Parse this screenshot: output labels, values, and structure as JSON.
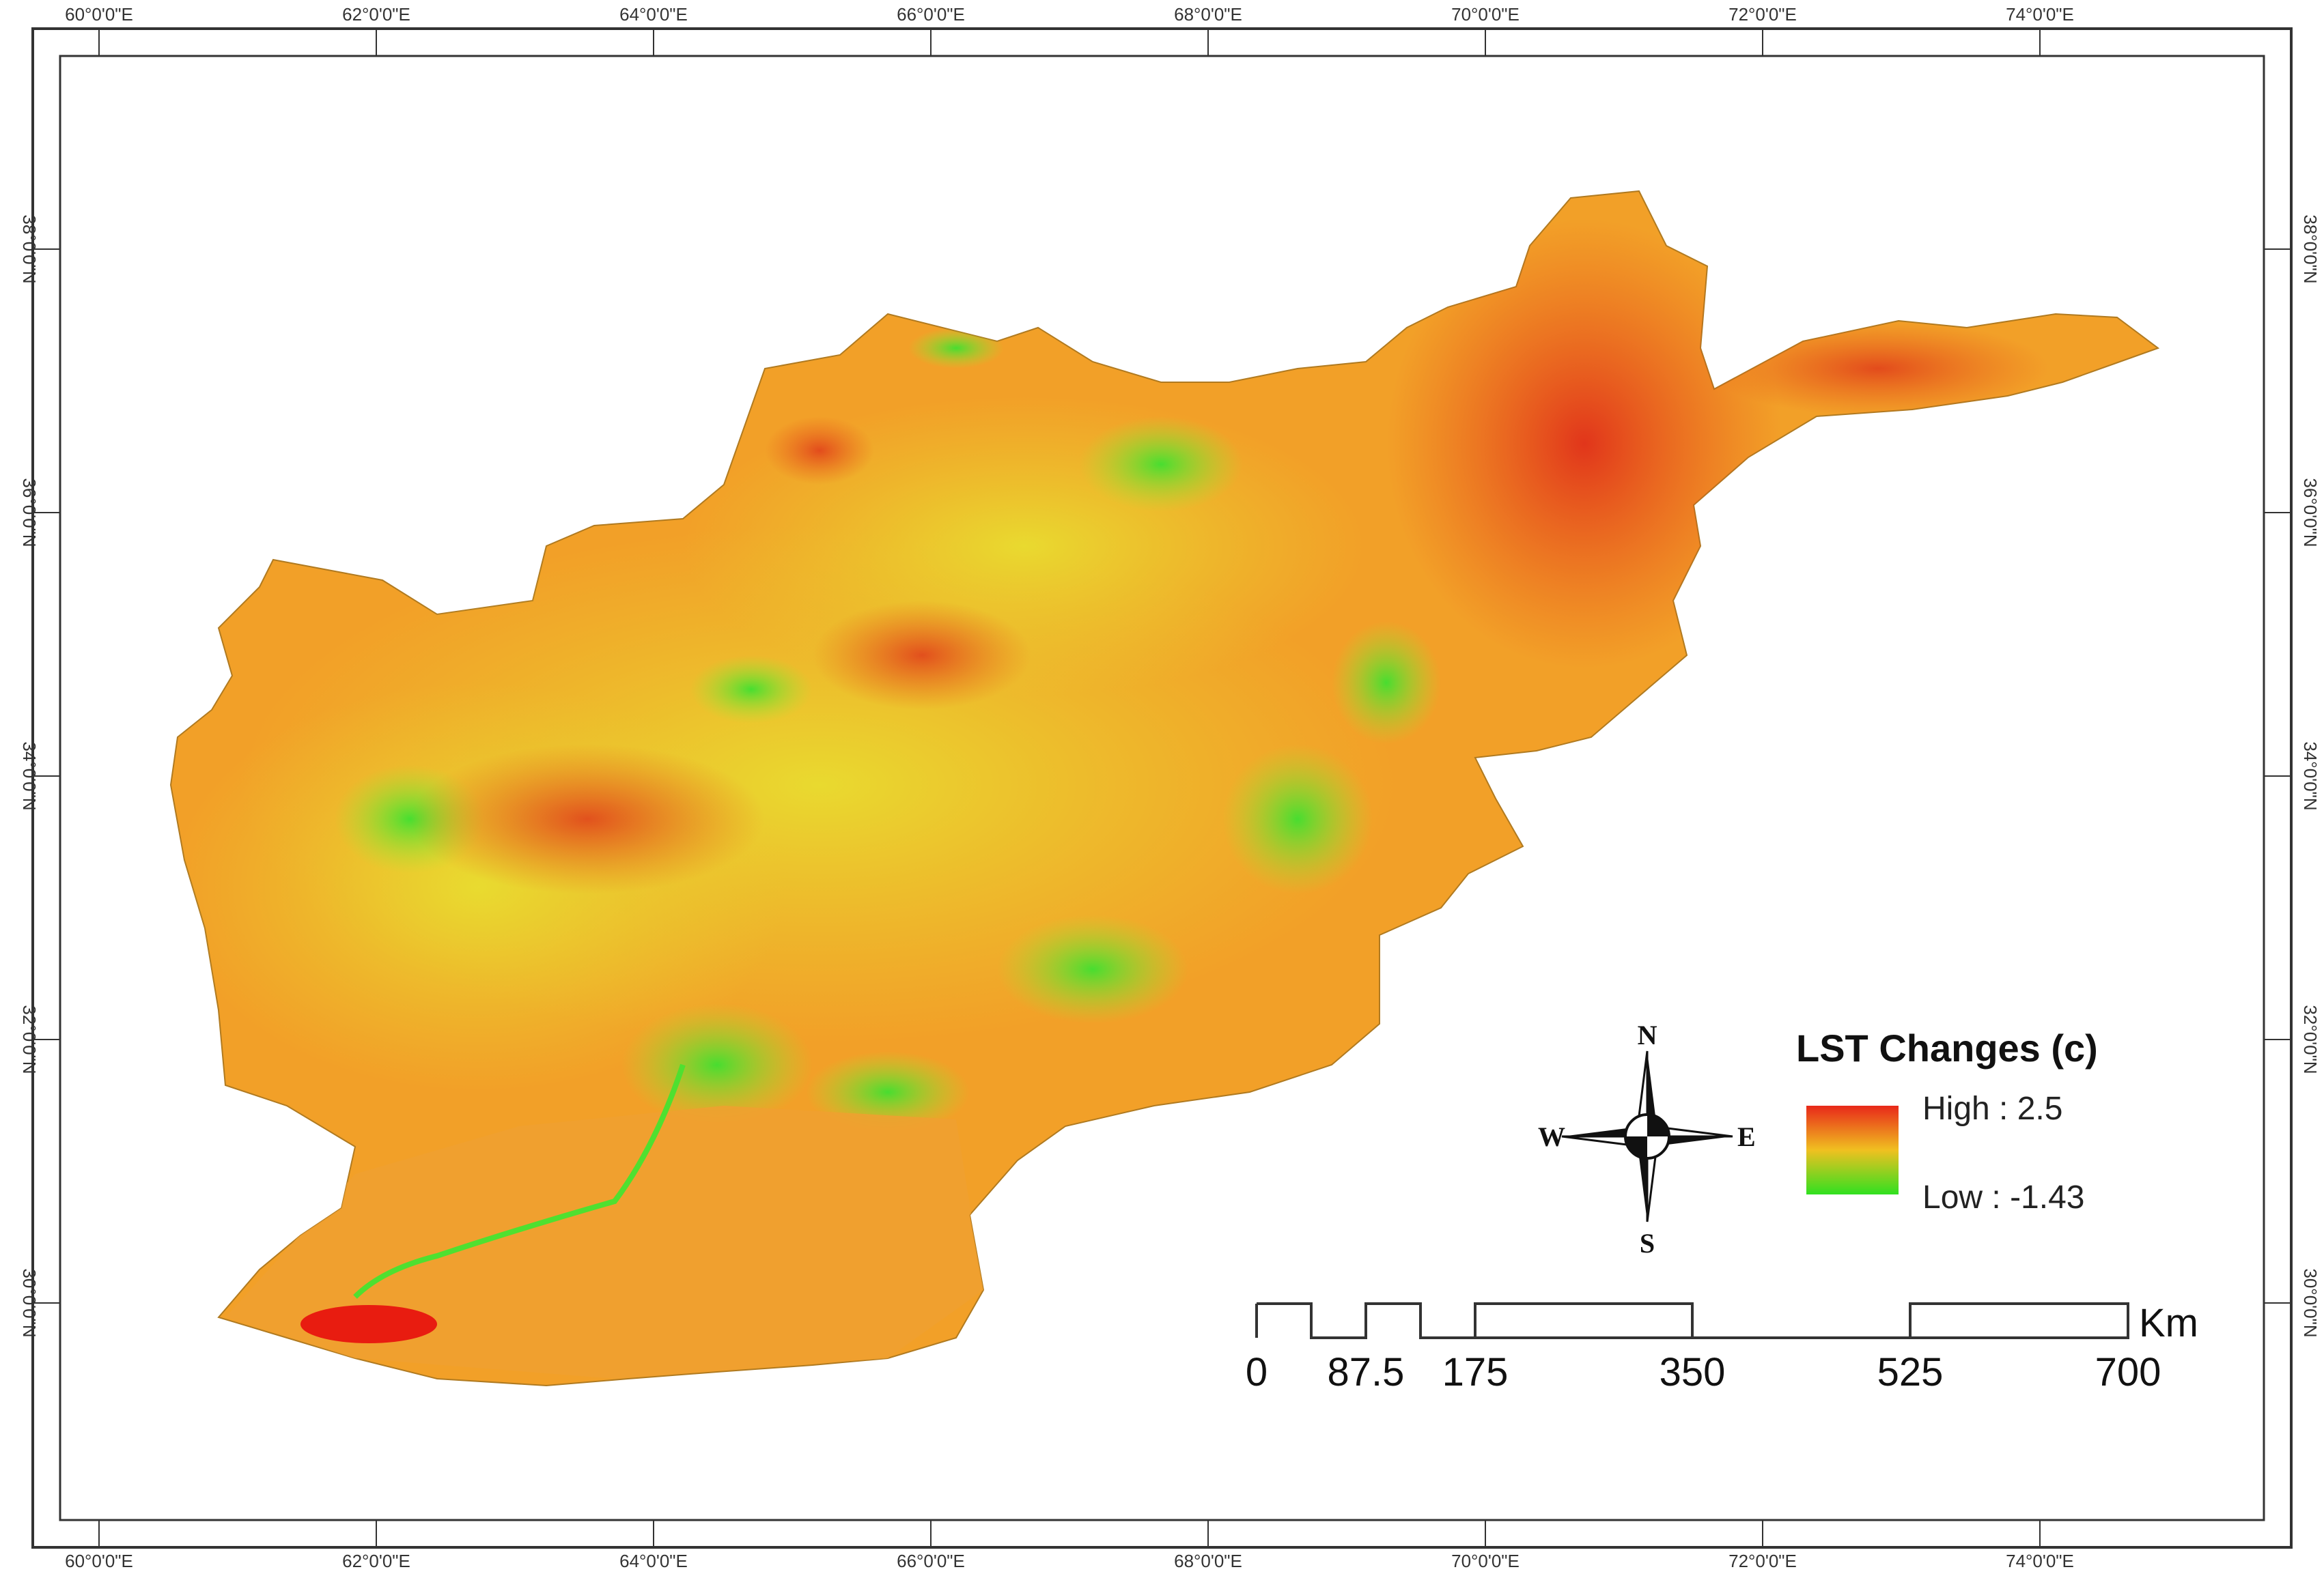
{
  "map": {
    "lon_ticks": [
      "60°0'0\"E",
      "62°0'0\"E",
      "64°0'0\"E",
      "66°0'0\"E",
      "68°0'0\"E",
      "70°0'0\"E",
      "72°0'0\"E",
      "74°0'0\"E"
    ],
    "lat_ticks": [
      "38°0'0\"N",
      "36°0'0\"N",
      "34°0'0\"N",
      "32°0'0\"N",
      "30°0'0\"N"
    ],
    "legend": {
      "title": "LST Changes (c)",
      "high_label": "High : 2.5",
      "low_label": "Low : -1.43",
      "colors": {
        "high": "#e8281a",
        "mid": "#f0c020",
        "low": "#30e020"
      }
    },
    "scale_bar": {
      "labels": [
        "0",
        "87.5",
        "175",
        "350",
        "525",
        "700"
      ],
      "unit": "Km"
    },
    "compass": {
      "n": "N",
      "s": "S",
      "e": "E",
      "w": "W"
    },
    "colors": {
      "frame": "#333333",
      "land_base": "#f2a028"
    }
  }
}
